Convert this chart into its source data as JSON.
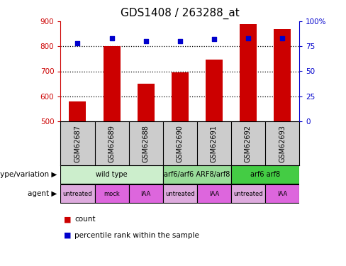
{
  "title": "GDS1408 / 263288_at",
  "samples": [
    "GSM62687",
    "GSM62689",
    "GSM62688",
    "GSM62690",
    "GSM62691",
    "GSM62692",
    "GSM62693"
  ],
  "bar_values": [
    580,
    800,
    650,
    695,
    748,
    890,
    870
  ],
  "percentile_values": [
    78,
    83,
    80,
    80,
    82,
    83,
    83
  ],
  "ylim_left": [
    500,
    900
  ],
  "ylim_right": [
    0,
    100
  ],
  "yticks_left": [
    500,
    600,
    700,
    800,
    900
  ],
  "yticks_right": [
    0,
    25,
    50,
    75,
    100
  ],
  "bar_color": "#cc0000",
  "dot_color": "#0000cc",
  "bar_bottom": 500,
  "genotype_groups": [
    {
      "label": "wild type",
      "span": [
        0,
        3
      ],
      "color": "#cceecc"
    },
    {
      "label": "arf6/arf6 ARF8/arf8",
      "span": [
        3,
        5
      ],
      "color": "#99dd99"
    },
    {
      "label": "arf6 arf8",
      "span": [
        5,
        7
      ],
      "color": "#44cc44"
    }
  ],
  "agent_groups": [
    {
      "label": "untreated",
      "span": [
        0,
        1
      ],
      "color": "#ddaadd"
    },
    {
      "label": "mock",
      "span": [
        1,
        2
      ],
      "color": "#dd66dd"
    },
    {
      "label": "IAA",
      "span": [
        2,
        3
      ],
      "color": "#dd66dd"
    },
    {
      "label": "untreated",
      "span": [
        3,
        4
      ],
      "color": "#ddaadd"
    },
    {
      "label": "IAA",
      "span": [
        4,
        5
      ],
      "color": "#dd66dd"
    },
    {
      "label": "untreated",
      "span": [
        5,
        6
      ],
      "color": "#ddaadd"
    },
    {
      "label": "IAA",
      "span": [
        6,
        7
      ],
      "color": "#dd66dd"
    }
  ],
  "sample_bg_color": "#cccccc",
  "legend_count_color": "#cc0000",
  "legend_dot_color": "#0000cc",
  "title_size": 11,
  "grid_lines": [
    600,
    700,
    800
  ]
}
